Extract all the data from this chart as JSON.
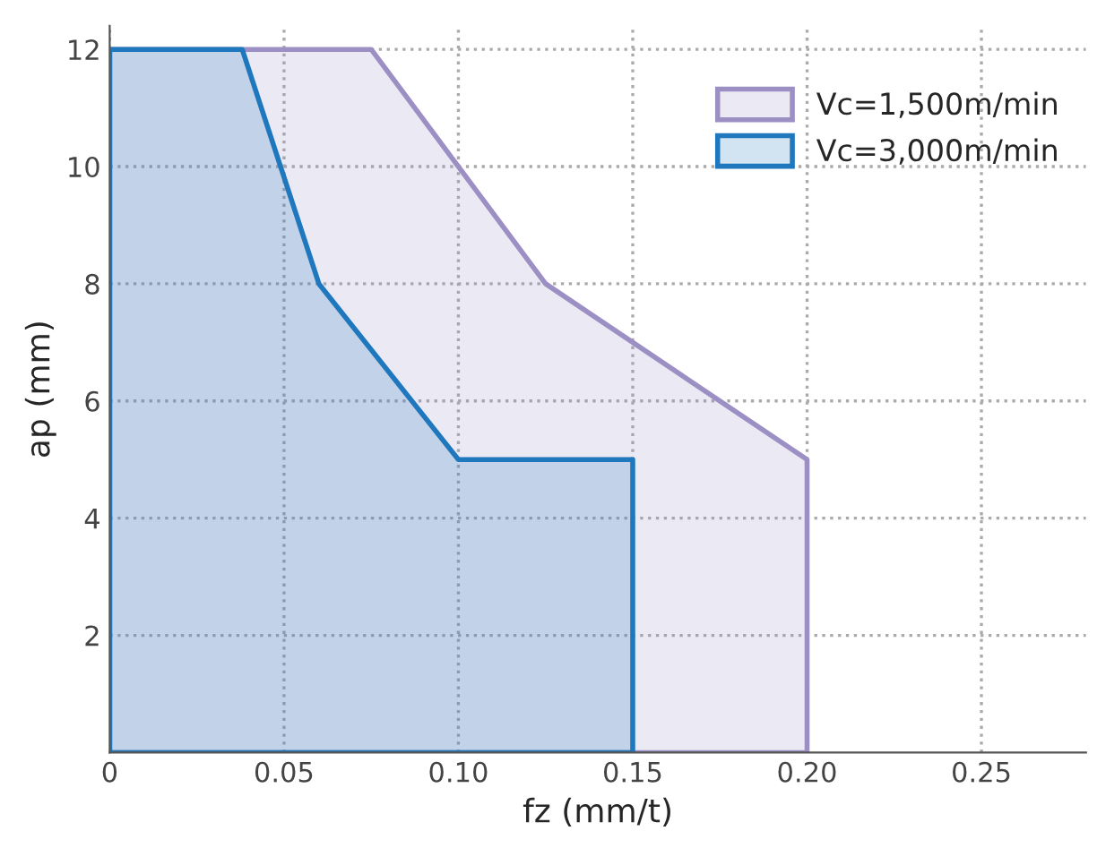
{
  "chart_data": {
    "type": "area",
    "xlabel": "fz (mm/t)",
    "ylabel": "ap (mm)",
    "xlim": [
      0,
      0.28
    ],
    "ylim": [
      0,
      12.4
    ],
    "xticks": [
      0,
      0.05,
      {
        "value": 0.1,
        "label": "0.10"
      },
      0.15,
      {
        "value": 0.2,
        "label": "0.20"
      },
      0.25
    ],
    "yticks": [
      2,
      4,
      6,
      8,
      10,
      12
    ],
    "grid": true,
    "legend": "top right",
    "series": [
      {
        "name": "Vc=1,500m/min",
        "color": "#9b8fc4",
        "x": [
          0,
          0.075,
          0.125,
          0.2
        ],
        "values": [
          12,
          12,
          8,
          5
        ]
      },
      {
        "name": "Vc=3,000m/min",
        "color": "#1f77bd",
        "x": [
          0,
          0.038,
          0.06,
          0.1,
          0.15
        ],
        "values": [
          12,
          12,
          8,
          5,
          5
        ]
      }
    ]
  }
}
